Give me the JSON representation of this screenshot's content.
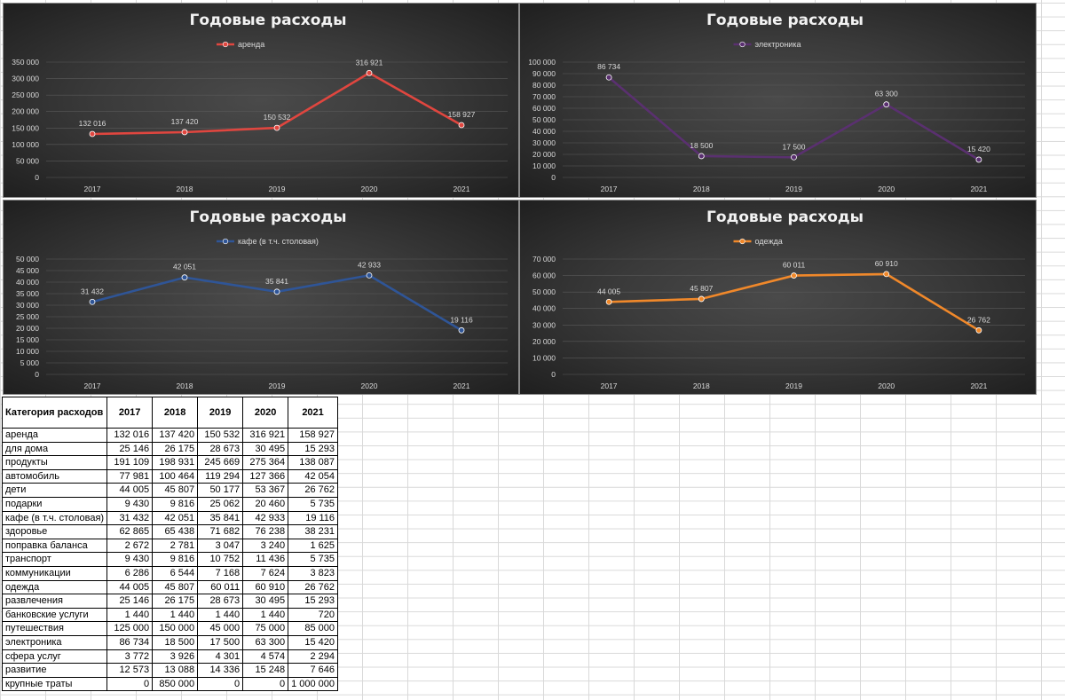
{
  "charts": [
    {
      "title": "Годовые расходы",
      "series_name": "аренда",
      "color": "#e0463f",
      "chart_data": {
        "type": "line",
        "title": "Годовые расходы",
        "categories": [
          "2017",
          "2018",
          "2019",
          "2020",
          "2021"
        ],
        "series": [
          {
            "name": "аренда",
            "values": [
              132016,
              137420,
              150532,
              316921,
              158927
            ]
          }
        ],
        "ylim": [
          0,
          350000
        ],
        "yticks": [
          "350 000",
          "300 000",
          "250 000",
          "200 000",
          "150 000",
          "100 000",
          "50 000",
          "0"
        ],
        "data_labels": [
          "132 016",
          "137 420",
          "150 532",
          "316 921",
          "158 927"
        ]
      }
    },
    {
      "title": "Годовые расходы",
      "series_name": "электроника",
      "color": "#5a3070",
      "chart_data": {
        "type": "line",
        "title": "Годовые расходы",
        "categories": [
          "2017",
          "2018",
          "2019",
          "2020",
          "2021"
        ],
        "series": [
          {
            "name": "электроника",
            "values": [
              86734,
              18500,
              17500,
              63300,
              15420
            ]
          }
        ],
        "ylim": [
          0,
          100000
        ],
        "yticks": [
          "100 000",
          "90 000",
          "80 000",
          "70 000",
          "60 000",
          "50 000",
          "40 000",
          "30 000",
          "20 000",
          "10 000",
          "0"
        ],
        "data_labels": [
          "86 734",
          "18 500",
          "17 500",
          "63 300",
          "15 420"
        ]
      }
    },
    {
      "title": "Годовые расходы",
      "series_name": "кафе (в т.ч. столовая)",
      "color": "#2f5597",
      "chart_data": {
        "type": "line",
        "title": "Годовые расходы",
        "categories": [
          "2017",
          "2018",
          "2019",
          "2020",
          "2021"
        ],
        "series": [
          {
            "name": "кафе (в т.ч. столовая)",
            "values": [
              31432,
              42051,
              35841,
              42933,
              19116
            ]
          }
        ],
        "ylim": [
          0,
          50000
        ],
        "yticks": [
          "50 000",
          "45 000",
          "40 000",
          "35 000",
          "30 000",
          "25 000",
          "20 000",
          "15 000",
          "10 000",
          "5 000",
          "0"
        ],
        "data_labels": [
          "31 432",
          "42 051",
          "35 841",
          "42 933",
          "19 116"
        ]
      }
    },
    {
      "title": "Годовые расходы",
      "series_name": "одежда",
      "color": "#f0882a",
      "chart_data": {
        "type": "line",
        "title": "Годовые расходы",
        "categories": [
          "2017",
          "2018",
          "2019",
          "2020",
          "2021"
        ],
        "series": [
          {
            "name": "одежда",
            "values": [
              44005,
              45807,
              60011,
              60910,
              26762
            ]
          }
        ],
        "ylim": [
          0,
          70000
        ],
        "yticks": [
          "70 000",
          "60 000",
          "50 000",
          "40 000",
          "30 000",
          "20 000",
          "10 000",
          "0"
        ],
        "data_labels": [
          "44 005",
          "45 807",
          "60 011",
          "60 910",
          "26 762"
        ]
      }
    }
  ],
  "table": {
    "header": [
      "Категория расходов",
      "2017",
      "2018",
      "2019",
      "2020",
      "2021"
    ],
    "rows": [
      [
        "аренда",
        "132 016",
        "137 420",
        "150 532",
        "316 921",
        "158 927"
      ],
      [
        "для дома",
        "25 146",
        "26 175",
        "28 673",
        "30 495",
        "15 293"
      ],
      [
        "продукты",
        "191 109",
        "198 931",
        "245 669",
        "275 364",
        "138 087"
      ],
      [
        "автомобиль",
        "77 981",
        "100 464",
        "119 294",
        "127 366",
        "42 054"
      ],
      [
        "дети",
        "44 005",
        "45 807",
        "50 177",
        "53 367",
        "26 762"
      ],
      [
        "подарки",
        "9 430",
        "9 816",
        "25 062",
        "20 460",
        "5 735"
      ],
      [
        "кафе (в т.ч. столовая)",
        "31 432",
        "42 051",
        "35 841",
        "42 933",
        "19 116"
      ],
      [
        "здоровье",
        "62 865",
        "65 438",
        "71 682",
        "76 238",
        "38 231"
      ],
      [
        "поправка баланса",
        "2 672",
        "2 781",
        "3 047",
        "3 240",
        "1 625"
      ],
      [
        "транспорт",
        "9 430",
        "9 816",
        "10 752",
        "11 436",
        "5 735"
      ],
      [
        "коммуникации",
        "6 286",
        "6 544",
        "7 168",
        "7 624",
        "3 823"
      ],
      [
        "одежда",
        "44 005",
        "45 807",
        "60 011",
        "60 910",
        "26 762"
      ],
      [
        "развлечения",
        "25 146",
        "26 175",
        "28 673",
        "30 495",
        "15 293"
      ],
      [
        "банковские услуги",
        "1 440",
        "1 440",
        "1 440",
        "1 440",
        "720"
      ],
      [
        "путешествия",
        "125 000",
        "150 000",
        "45 000",
        "75 000",
        "85 000"
      ],
      [
        "электроника",
        "86 734",
        "18 500",
        "17 500",
        "63 300",
        "15 420"
      ],
      [
        "сфера услуг",
        "3 772",
        "3 926",
        "4 301",
        "4 574",
        "2 294"
      ],
      [
        "развитие",
        "12 573",
        "13 088",
        "14 336",
        "15 248",
        "7 646"
      ],
      [
        "крупные траты",
        "0",
        "850 000",
        "0",
        "0",
        "1 000 000"
      ]
    ]
  }
}
